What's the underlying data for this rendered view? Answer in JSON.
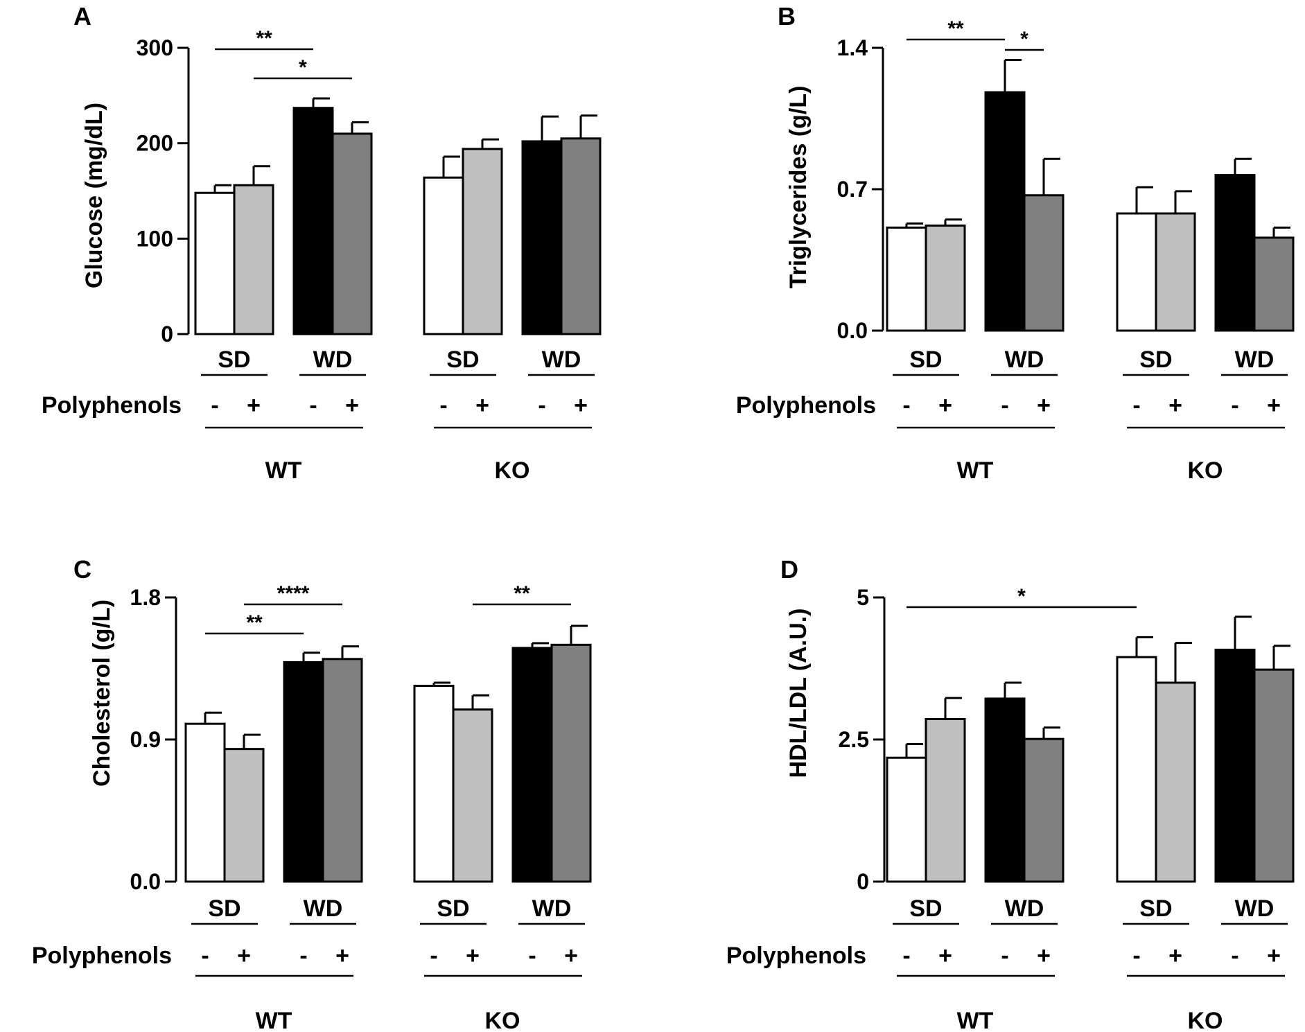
{
  "figure": {
    "panels": [
      "A",
      "B",
      "C",
      "D"
    ]
  },
  "chart_data": [
    {
      "panel": "A",
      "type": "bar",
      "ylabel": "Glucose (mg/dL)",
      "ylim": [
        0,
        300
      ],
      "yticks": [
        "0",
        "100",
        "200",
        "300"
      ],
      "yticks_values": [
        0,
        100,
        200,
        300
      ],
      "groups": [
        {
          "genotype": "WT",
          "diets": [
            {
              "diet": "SD",
              "bars": [
                {
                  "pp": "-",
                  "value": 148,
                  "error": 8,
                  "color": "#ffffff"
                },
                {
                  "pp": "+",
                  "value": 156,
                  "error": 20,
                  "color": "#c0c0c0"
                }
              ]
            },
            {
              "diet": "WD",
              "bars": [
                {
                  "pp": "-",
                  "value": 237,
                  "error": 10,
                  "color": "#000000"
                },
                {
                  "pp": "+",
                  "value": 210,
                  "error": 12,
                  "color": "#808080"
                }
              ]
            }
          ]
        },
        {
          "genotype": "KO",
          "diets": [
            {
              "diet": "SD",
              "bars": [
                {
                  "pp": "-",
                  "value": 164,
                  "error": 22,
                  "color": "#ffffff"
                },
                {
                  "pp": "+",
                  "value": 194,
                  "error": 10,
                  "color": "#c0c0c0"
                }
              ]
            },
            {
              "diet": "WD",
              "bars": [
                {
                  "pp": "-",
                  "value": 202,
                  "error": 26,
                  "color": "#000000"
                },
                {
                  "pp": "+",
                  "value": 205,
                  "error": 24,
                  "color": "#808080"
                }
              ]
            }
          ]
        }
      ],
      "significance": [
        {
          "label": "**",
          "from": 0,
          "to": 2
        },
        {
          "label": "*",
          "from": 1,
          "to": 3
        }
      ]
    },
    {
      "panel": "B",
      "type": "bar",
      "ylabel": "Triglycerides (g/L)",
      "ylim": [
        0,
        1.4
      ],
      "yticks": [
        "0.0",
        "0.7",
        "1.4"
      ],
      "yticks_values": [
        0,
        0.7,
        1.4
      ],
      "groups": [
        {
          "genotype": "WT",
          "diets": [
            {
              "diet": "SD",
              "bars": [
                {
                  "pp": "-",
                  "value": 0.51,
                  "error": 0.02,
                  "color": "#ffffff"
                },
                {
                  "pp": "+",
                  "value": 0.52,
                  "error": 0.03,
                  "color": "#c0c0c0"
                }
              ]
            },
            {
              "diet": "WD",
              "bars": [
                {
                  "pp": "-",
                  "value": 1.18,
                  "error": 0.16,
                  "color": "#000000"
                },
                {
                  "pp": "+",
                  "value": 0.67,
                  "error": 0.18,
                  "color": "#808080"
                }
              ]
            }
          ]
        },
        {
          "genotype": "KO",
          "diets": [
            {
              "diet": "SD",
              "bars": [
                {
                  "pp": "-",
                  "value": 0.58,
                  "error": 0.13,
                  "color": "#ffffff"
                },
                {
                  "pp": "+",
                  "value": 0.58,
                  "error": 0.11,
                  "color": "#c0c0c0"
                }
              ]
            },
            {
              "diet": "WD",
              "bars": [
                {
                  "pp": "-",
                  "value": 0.77,
                  "error": 0.08,
                  "color": "#000000"
                },
                {
                  "pp": "+",
                  "value": 0.46,
                  "error": 0.05,
                  "color": "#808080"
                }
              ]
            }
          ]
        }
      ],
      "significance": [
        {
          "label": "**",
          "from": 0,
          "to": 2
        },
        {
          "label": "*",
          "from": 2,
          "to": 3
        }
      ]
    },
    {
      "panel": "C",
      "type": "bar",
      "ylabel": "Cholesterol (g/L)",
      "ylim": [
        0,
        1.8
      ],
      "yticks": [
        "0.0",
        "0.9",
        "1.8"
      ],
      "yticks_values": [
        0,
        0.9,
        1.8
      ],
      "groups": [
        {
          "genotype": "WT",
          "diets": [
            {
              "diet": "SD",
              "bars": [
                {
                  "pp": "-",
                  "value": 1.0,
                  "error": 0.07,
                  "color": "#ffffff"
                },
                {
                  "pp": "+",
                  "value": 0.84,
                  "error": 0.09,
                  "color": "#c0c0c0"
                }
              ]
            },
            {
              "diet": "WD",
              "bars": [
                {
                  "pp": "-",
                  "value": 1.39,
                  "error": 0.06,
                  "color": "#000000"
                },
                {
                  "pp": "+",
                  "value": 1.41,
                  "error": 0.08,
                  "color": "#808080"
                }
              ]
            }
          ]
        },
        {
          "genotype": "KO",
          "diets": [
            {
              "diet": "SD",
              "bars": [
                {
                  "pp": "-",
                  "value": 1.24,
                  "error": 0.02,
                  "color": "#ffffff"
                },
                {
                  "pp": "+",
                  "value": 1.09,
                  "error": 0.09,
                  "color": "#c0c0c0"
                }
              ]
            },
            {
              "diet": "WD",
              "bars": [
                {
                  "pp": "-",
                  "value": 1.48,
                  "error": 0.03,
                  "color": "#000000"
                },
                {
                  "pp": "+",
                  "value": 1.5,
                  "error": 0.12,
                  "color": "#808080"
                }
              ]
            }
          ]
        }
      ],
      "significance": [
        {
          "label": "**",
          "from": 0,
          "to": 2
        },
        {
          "label": "****",
          "from": 1,
          "to": 3
        },
        {
          "label": "**",
          "from": 5,
          "to": 7
        }
      ]
    },
    {
      "panel": "D",
      "type": "bar",
      "ylabel": "HDL/LDL (A.U.)",
      "ylim": [
        0,
        5
      ],
      "yticks": [
        "0",
        "2.5",
        "5"
      ],
      "yticks_values": [
        0,
        2.5,
        5
      ],
      "groups": [
        {
          "genotype": "WT",
          "diets": [
            {
              "diet": "SD",
              "bars": [
                {
                  "pp": "-",
                  "value": 2.18,
                  "error": 0.24,
                  "color": "#ffffff"
                },
                {
                  "pp": "+",
                  "value": 2.86,
                  "error": 0.37,
                  "color": "#c0c0c0"
                }
              ]
            },
            {
              "diet": "WD",
              "bars": [
                {
                  "pp": "-",
                  "value": 3.22,
                  "error": 0.28,
                  "color": "#000000"
                },
                {
                  "pp": "+",
                  "value": 2.51,
                  "error": 0.2,
                  "color": "#808080"
                }
              ]
            }
          ]
        },
        {
          "genotype": "KO",
          "diets": [
            {
              "diet": "SD",
              "bars": [
                {
                  "pp": "-",
                  "value": 3.95,
                  "error": 0.35,
                  "color": "#ffffff"
                },
                {
                  "pp": "+",
                  "value": 3.5,
                  "error": 0.7,
                  "color": "#c0c0c0"
                }
              ]
            },
            {
              "diet": "WD",
              "bars": [
                {
                  "pp": "-",
                  "value": 4.08,
                  "error": 0.58,
                  "color": "#000000"
                },
                {
                  "pp": "+",
                  "value": 3.73,
                  "error": 0.42,
                  "color": "#808080"
                }
              ]
            }
          ]
        }
      ],
      "significance": [
        {
          "label": "*",
          "from": 0,
          "to": 4
        }
      ]
    }
  ],
  "labels": {
    "polyphenols": "Polyphenols"
  }
}
